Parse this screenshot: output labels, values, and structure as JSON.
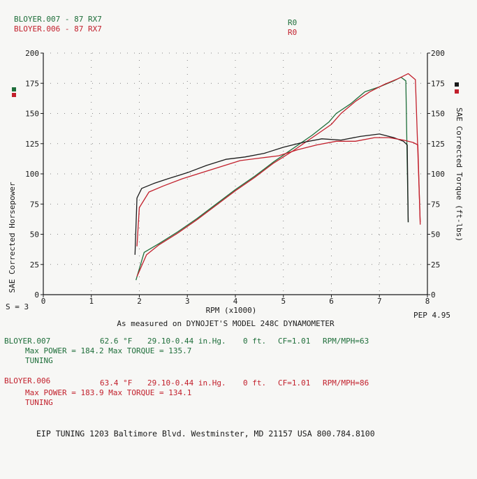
{
  "header": {
    "run1_label": "BLOYER.007 - 87 RX7",
    "run2_label": "BLOYER.006 - 87 RX7",
    "run1_code": "R0",
    "run2_code": "R0"
  },
  "colors": {
    "run1": "#1e6e3a",
    "run2": "#c2202c",
    "run1_hp": "#1a1a1a",
    "axis": "#1a1a1a"
  },
  "chart_data": {
    "type": "line",
    "xlabel": "RPM (x1000)",
    "ylabel_left": "SAE Corrected Horsepower",
    "ylabel_right": "SAE Corrected Torque (ft-lbs)",
    "xlim": [
      0,
      8
    ],
    "ylim_left": [
      0,
      200
    ],
    "ylim_right": [
      0,
      200
    ],
    "x_ticks": [
      "0",
      "1",
      "2",
      "3",
      "4",
      "5",
      "6",
      "7",
      "8"
    ],
    "y_ticks": [
      "0",
      "25",
      "50",
      "75",
      "100",
      "125",
      "150",
      "175",
      "200"
    ],
    "smoothing": "S = 3",
    "pep": "PEP 4.95",
    "subtitle": "As measured on DYNOJET'S MODEL 248C DYNAMOMETER",
    "series": [
      {
        "name": "BLOYER.007 HP",
        "axis": "left",
        "color": "#1e6e3a",
        "x": [
          1.93,
          2.1,
          2.4,
          2.8,
          3.2,
          3.6,
          4.0,
          4.4,
          4.8,
          5.2,
          5.6,
          5.95,
          6.1,
          6.4,
          6.7,
          7.0,
          7.3,
          7.45,
          7.55,
          7.6
        ],
        "y": [
          12,
          35,
          42,
          52,
          63,
          75,
          87,
          98,
          110,
          121,
          132,
          143,
          150,
          158,
          168,
          172,
          177,
          180,
          177,
          60
        ]
      },
      {
        "name": "BLOYER.006 HP",
        "axis": "left",
        "color": "#c2202c",
        "x": [
          1.95,
          2.15,
          2.4,
          2.8,
          3.2,
          3.6,
          4.0,
          4.4,
          4.8,
          5.2,
          5.6,
          6.0,
          6.2,
          6.5,
          6.8,
          7.1,
          7.4,
          7.6,
          7.75,
          7.85
        ],
        "y": [
          15,
          33,
          41,
          51,
          62,
          74,
          86,
          97,
          109,
          119,
          130,
          141,
          150,
          160,
          168,
          174,
          179,
          183,
          178,
          60
        ]
      },
      {
        "name": "BLOYER.007 TQ",
        "axis": "right",
        "color": "#1a1a1a",
        "x": [
          1.91,
          1.95,
          2.05,
          2.3,
          2.6,
          3.0,
          3.4,
          3.8,
          4.2,
          4.6,
          5.0,
          5.4,
          5.8,
          6.2,
          6.6,
          7.0,
          7.3,
          7.5,
          7.58,
          7.6
        ],
        "y": [
          33,
          80,
          88,
          92,
          96,
          101,
          107,
          112,
          114,
          117,
          122,
          126,
          129,
          128,
          131,
          133,
          130,
          127,
          124,
          60
        ]
      },
      {
        "name": "BLOYER.006 TQ",
        "axis": "right",
        "color": "#c2202c",
        "x": [
          1.95,
          2.0,
          2.2,
          2.5,
          2.9,
          3.3,
          3.7,
          4.1,
          4.5,
          4.9,
          5.3,
          5.7,
          6.1,
          6.5,
          6.9,
          7.2,
          7.5,
          7.7,
          7.8,
          7.85
        ],
        "y": [
          40,
          72,
          85,
          90,
          96,
          101,
          106,
          111,
          113,
          115,
          120,
          124,
          127,
          127,
          130,
          130,
          128,
          126,
          124,
          58
        ]
      }
    ]
  },
  "runs": [
    {
      "name": "BLOYER.007",
      "temp": "62.6 °F",
      "baro": "29.10-0.44 in.Hg.",
      "elev": "0 ft.",
      "cf": "CF=1.01",
      "rpm_mph": "RPM/MPH=63",
      "max_line": "Max POWER = 184.2  Max TORQUE = 135.7",
      "tuning": "TUNING"
    },
    {
      "name": "BLOYER.006",
      "temp": "63.4 °F",
      "baro": "29.10-0.44 in.Hg.",
      "elev": "0 ft.",
      "cf": "CF=1.01",
      "rpm_mph": "RPM/MPH=86",
      "max_line": "Max POWER = 183.9  Max TORQUE = 134.1",
      "tuning": "TUNING"
    }
  ],
  "footer": "EIP TUNING  1203 Baltimore Blvd. Westminster, MD 21157 USA 800.784.8100"
}
